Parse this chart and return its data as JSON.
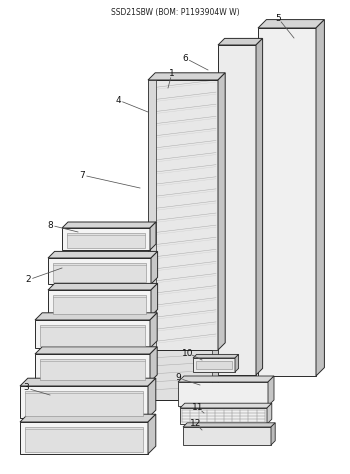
{
  "title": "SSD21SBW (BOM: P1193904W W)",
  "bg_color": "#ffffff",
  "lc": "#2a2a2a",
  "fc_light": "#f2f2f2",
  "fc_mid": "#d8d8d8",
  "fc_dark": "#b8b8b8",
  "fc_top": "#e0e0e0",
  "hatch_color": "#999999"
}
